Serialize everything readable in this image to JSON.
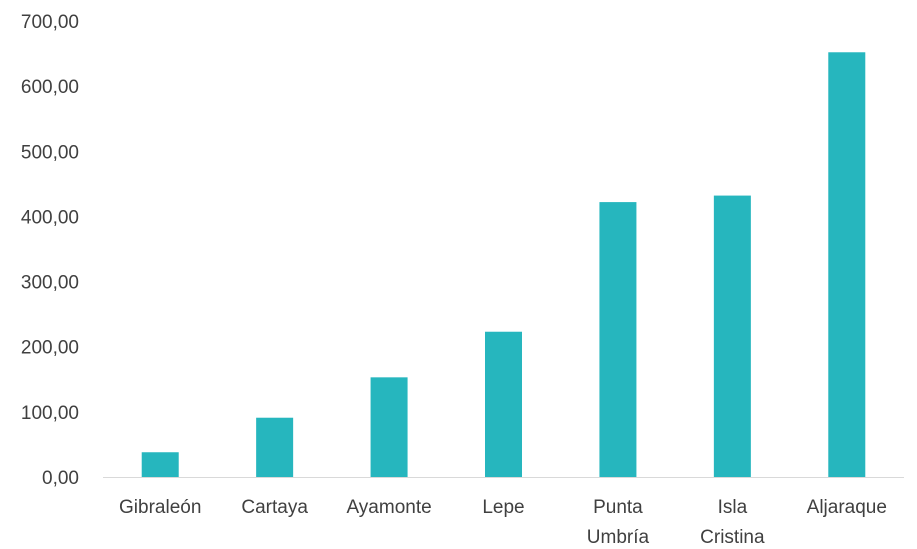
{
  "chart_data": {
    "type": "bar",
    "categories": [
      [
        "Gibraleón"
      ],
      [
        "Cartaya"
      ],
      [
        "Ayamonte"
      ],
      [
        "Lepe"
      ],
      [
        "Punta",
        "Umbría"
      ],
      [
        "Isla",
        "Cristina"
      ],
      [
        "Aljaraque"
      ]
    ],
    "values": [
      38,
      91,
      153,
      223,
      422,
      432,
      652
    ],
    "ylim": [
      0,
      700
    ],
    "yticks": [
      "0,00",
      "100,00",
      "200,00",
      "300,00",
      "400,00",
      "500,00",
      "600,00",
      "700,00"
    ],
    "bar_color": "#26B6BE",
    "axis_color": "#D9D9D9",
    "grid": false,
    "title": "",
    "xlabel": "",
    "ylabel": ""
  }
}
